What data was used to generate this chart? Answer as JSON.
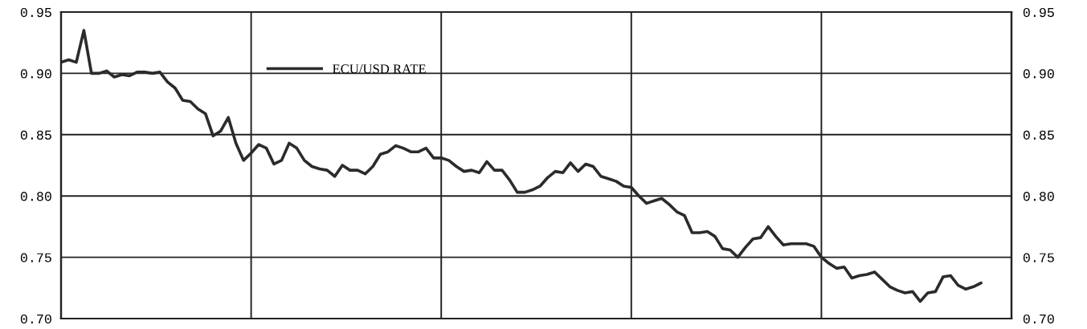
{
  "chart_data": {
    "type": "line",
    "categories": [
      null,
      null,
      null,
      null,
      null,
      null,
      null,
      null,
      null,
      null,
      null,
      null,
      null,
      null,
      null,
      null,
      null,
      null,
      null,
      null,
      null,
      null,
      null,
      null,
      null,
      null,
      null,
      null,
      null,
      null,
      null,
      null,
      null,
      null,
      null,
      null,
      null,
      null,
      null,
      null,
      null,
      null,
      null,
      null,
      null,
      null,
      null,
      null,
      null,
      null,
      null,
      null,
      null,
      null,
      null,
      null,
      null,
      null,
      null,
      null,
      null,
      null,
      null,
      null,
      null,
      null,
      null,
      null,
      null,
      null,
      null,
      null,
      null,
      null,
      null,
      null,
      null,
      null,
      null,
      null,
      null,
      null,
      null,
      null,
      null,
      null,
      null,
      null,
      null,
      null,
      null,
      null,
      null,
      null,
      null,
      null,
      null,
      null,
      null,
      null,
      null,
      null,
      null,
      null,
      null,
      null,
      null,
      null,
      null,
      null,
      null,
      null,
      null,
      null,
      null,
      null,
      null,
      null,
      null,
      null,
      null,
      null,
      null,
      null,
      null,
      null
    ],
    "series": [
      {
        "name": "ECU/USD RATE",
        "color": "#2b2b2b",
        "values": [
          0.909,
          0.911,
          0.909,
          0.935,
          0.9,
          0.9,
          0.902,
          0.897,
          0.899,
          0.898,
          0.901,
          0.901,
          0.9,
          0.901,
          0.893,
          0.888,
          0.878,
          0.877,
          0.871,
          0.867,
          0.849,
          0.853,
          0.864,
          0.843,
          0.829,
          0.835,
          0.842,
          0.839,
          0.826,
          0.829,
          0.843,
          0.839,
          0.829,
          0.824,
          0.822,
          0.821,
          0.816,
          0.825,
          0.821,
          0.821,
          0.818,
          0.824,
          0.834,
          0.836,
          0.841,
          0.839,
          0.836,
          0.836,
          0.839,
          0.831,
          0.831,
          0.829,
          0.824,
          0.82,
          0.821,
          0.819,
          0.828,
          0.821,
          0.821,
          0.813,
          0.803,
          0.803,
          0.805,
          0.808,
          0.815,
          0.82,
          0.819,
          0.827,
          0.82,
          0.826,
          0.824,
          0.816,
          0.814,
          0.812,
          0.808,
          0.807,
          0.8,
          0.794,
          0.796,
          0.798,
          0.793,
          0.787,
          0.784,
          0.77,
          0.77,
          0.771,
          0.767,
          0.757,
          0.756,
          0.75,
          0.758,
          0.765,
          0.766,
          0.775,
          0.767,
          0.76,
          0.761,
          0.761,
          0.761,
          0.759,
          0.75,
          0.745,
          0.741,
          0.742,
          0.733,
          0.735,
          0.736,
          0.738,
          0.732,
          0.726,
          0.723,
          0.721,
          0.722,
          0.714,
          0.721,
          0.722,
          0.734,
          0.735,
          0.727,
          0.724,
          0.726,
          0.729,
          null,
          null,
          null,
          null
        ]
      }
    ],
    "ylim": [
      0.7,
      0.95
    ],
    "yticks": [
      {
        "value": 0.7,
        "label": "0.70"
      },
      {
        "value": 0.75,
        "label": "0.75"
      },
      {
        "value": 0.8,
        "label": "0.80"
      },
      {
        "value": 0.85,
        "label": "0.85"
      },
      {
        "value": 0.9,
        "label": "0.90"
      },
      {
        "value": 0.95,
        "label": "0.95"
      }
    ],
    "y2lim": [
      0.7,
      0.95
    ],
    "y2ticks": [
      {
        "value": 0.7,
        "label": "0.70"
      },
      {
        "value": 0.75,
        "label": "0.75"
      },
      {
        "value": 0.8,
        "label": "0.80"
      },
      {
        "value": 0.85,
        "label": "0.85"
      },
      {
        "value": 0.9,
        "label": "0.90"
      },
      {
        "value": 0.95,
        "label": "0.95"
      }
    ],
    "grid": true,
    "legend": "top left",
    "line_style": "solid"
  }
}
